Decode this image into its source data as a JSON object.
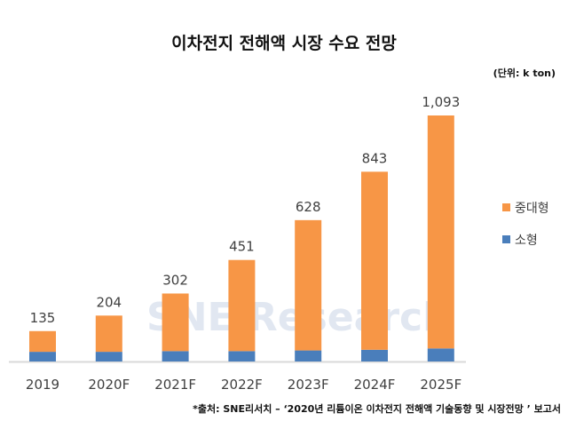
{
  "title": "이차전지 전해액 시장 수요 전망",
  "unit": "(단위: k ton)",
  "source": "*출처: SNE리서치 – ‘2020년 리튬이온 이차전지 전해액 기술동향 및 시장전망 ’  보고서",
  "watermark": "SNE Research",
  "chart_data": {
    "type": "bar",
    "stacked": true,
    "categories": [
      "2019",
      "2020F",
      "2021F",
      "2022F",
      "2023F",
      "2024F",
      "2025F"
    ],
    "totals": [
      135,
      204,
      302,
      451,
      628,
      843,
      1093
    ],
    "total_labels": [
      "135",
      "204",
      "302",
      "451",
      "628",
      "843",
      "1,093"
    ],
    "series": [
      {
        "name": "소형",
        "color": "#4a7ebb",
        "values": [
          43,
          43,
          46,
          46,
          49,
          52,
          58
        ]
      },
      {
        "name": "중대형",
        "color": "#f79646",
        "values": [
          92,
          161,
          256,
          405,
          579,
          791,
          1035
        ]
      }
    ],
    "ylim": [
      0,
      1150
    ],
    "grid": false,
    "legend": "right"
  }
}
